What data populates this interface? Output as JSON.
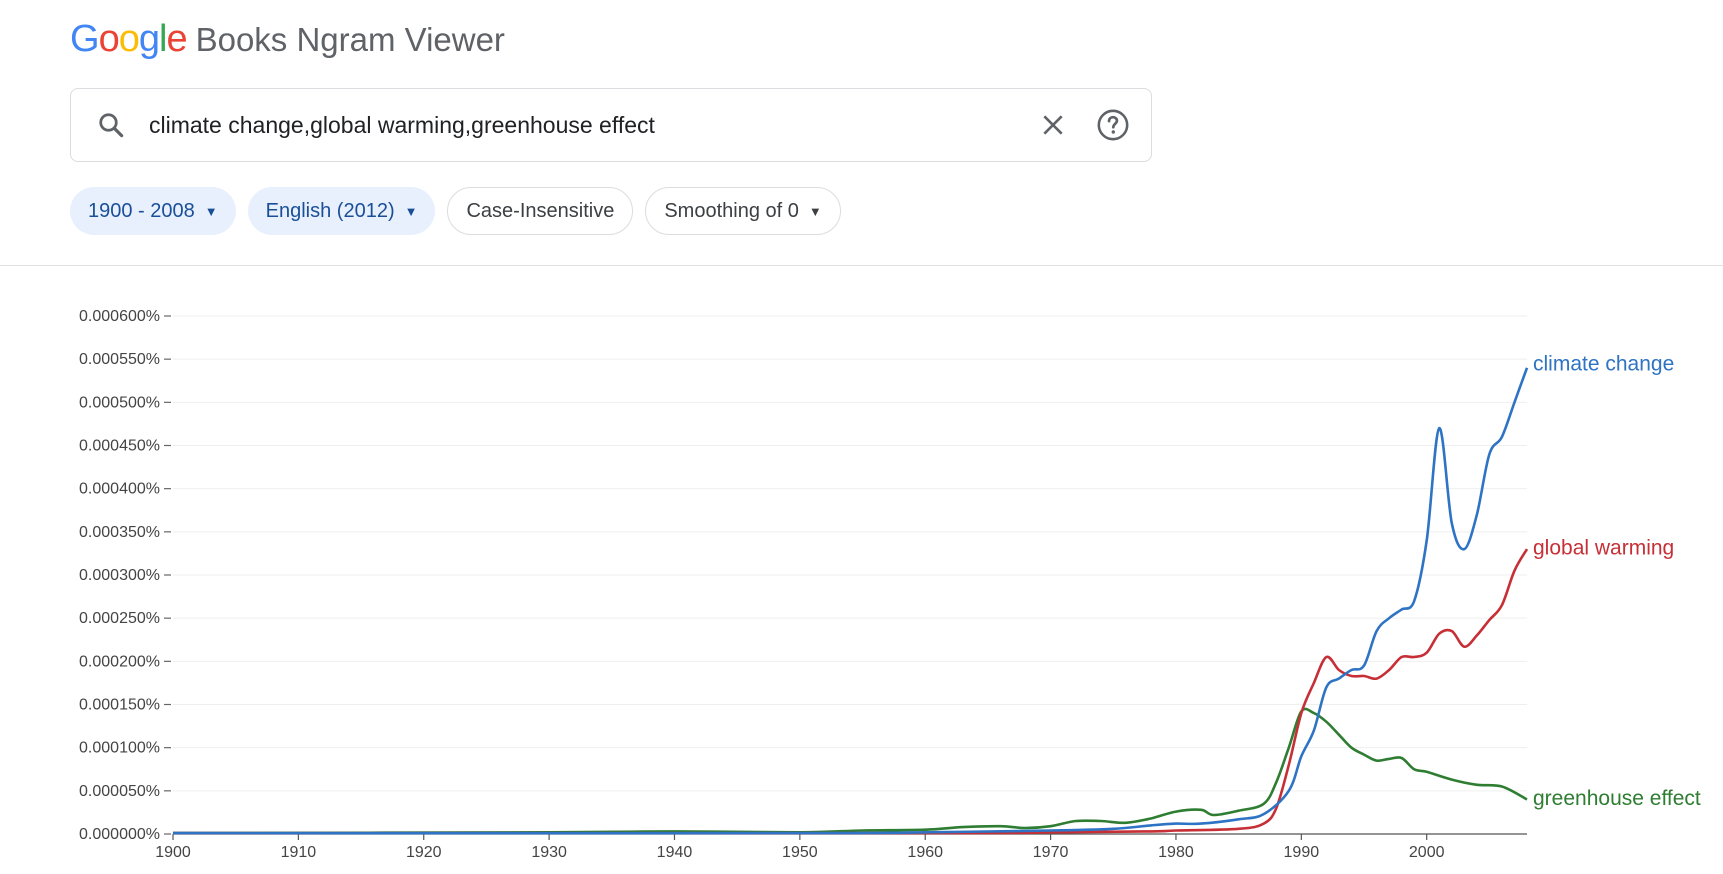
{
  "logo": {
    "letters": [
      {
        "ch": "G",
        "color": "#4285F4"
      },
      {
        "ch": "o",
        "color": "#EA4335"
      },
      {
        "ch": "o",
        "color": "#FBBC05"
      },
      {
        "ch": "g",
        "color": "#4285F4"
      },
      {
        "ch": "l",
        "color": "#34A853"
      },
      {
        "ch": "e",
        "color": "#EA4335"
      }
    ],
    "product": "Books Ngram Viewer"
  },
  "search": {
    "value": "climate change,global warming,greenhouse effect",
    "icon": "search-icon",
    "clear_icon": "close-icon",
    "help_icon": "help-circle-icon"
  },
  "filters": {
    "year_range": "1900 - 2008",
    "corpus": "English (2012)",
    "case": "Case-Insensitive",
    "smoothing": "Smoothing of 0"
  },
  "colors": {
    "accent": "#1a4f97",
    "chip_bg": "#e8f0fe",
    "climate_change": "#2e73c4",
    "global_warming": "#c62f36",
    "greenhouse_effect": "#2e7d32"
  },
  "chart_data": {
    "type": "line",
    "xlim": [
      1900,
      2008
    ],
    "ylim": [
      0,
      0.0006
    ],
    "x_ticks": [
      1900,
      1910,
      1920,
      1930,
      1940,
      1950,
      1960,
      1970,
      1980,
      1990,
      2000
    ],
    "y_ticks": [
      "0.000000%",
      "0.000050%",
      "0.000100%",
      "0.000150%",
      "0.000200%",
      "0.000250%",
      "0.000300%",
      "0.000350%",
      "0.000400%",
      "0.000450%",
      "0.000500%",
      "0.000550%",
      "0.000600%"
    ],
    "grid": true,
    "legend": "inline-right",
    "series": [
      {
        "name": "climate change",
        "color": "#2e73c4",
        "points": [
          [
            1900,
            1e-06
          ],
          [
            1950,
            1e-06
          ],
          [
            1960,
            2e-06
          ],
          [
            1970,
            4e-06
          ],
          [
            1975,
            6e-06
          ],
          [
            1978,
            1e-05
          ],
          [
            1980,
            1.2e-05
          ],
          [
            1982,
            1.2e-05
          ],
          [
            1985,
            1.7e-05
          ],
          [
            1987,
            2.3e-05
          ],
          [
            1989,
            5e-05
          ],
          [
            1990,
            9e-05
          ],
          [
            1991,
            0.00012
          ],
          [
            1992,
            0.00017
          ],
          [
            1993,
            0.00018
          ],
          [
            1994,
            0.00019
          ],
          [
            1995,
            0.000195
          ],
          [
            1996,
            0.000235
          ],
          [
            1997,
            0.00025
          ],
          [
            1998,
            0.00026
          ],
          [
            1999,
            0.00027
          ],
          [
            2000,
            0.00034
          ],
          [
            2001,
            0.00047
          ],
          [
            2002,
            0.00036
          ],
          [
            2003,
            0.00033
          ],
          [
            2004,
            0.00037
          ],
          [
            2005,
            0.00044
          ],
          [
            2006,
            0.00046
          ],
          [
            2007,
            0.0005
          ],
          [
            2008,
            0.00054
          ]
        ]
      },
      {
        "name": "global warming",
        "color": "#c62f36",
        "points": [
          [
            1900,
            1e-06
          ],
          [
            1960,
            1e-06
          ],
          [
            1970,
            2e-06
          ],
          [
            1978,
            3e-06
          ],
          [
            1980,
            4e-06
          ],
          [
            1985,
            6e-06
          ],
          [
            1987,
            1.2e-05
          ],
          [
            1988,
            3e-05
          ],
          [
            1989,
            8e-05
          ],
          [
            1990,
            0.00014
          ],
          [
            1991,
            0.000175
          ],
          [
            1992,
            0.000205
          ],
          [
            1993,
            0.00019
          ],
          [
            1994,
            0.000183
          ],
          [
            1995,
            0.000183
          ],
          [
            1996,
            0.00018
          ],
          [
            1997,
            0.00019
          ],
          [
            1998,
            0.000205
          ],
          [
            1999,
            0.000205
          ],
          [
            2000,
            0.00021
          ],
          [
            2001,
            0.000232
          ],
          [
            2002,
            0.000235
          ],
          [
            2003,
            0.000217
          ],
          [
            2004,
            0.00023
          ],
          [
            2005,
            0.000248
          ],
          [
            2006,
            0.000265
          ],
          [
            2007,
            0.000305
          ],
          [
            2008,
            0.00033
          ]
        ]
      },
      {
        "name": "greenhouse effect",
        "color": "#2e7d32",
        "points": [
          [
            1900,
            1e-06
          ],
          [
            1930,
            2e-06
          ],
          [
            1940,
            3e-06
          ],
          [
            1950,
            2e-06
          ],
          [
            1955,
            4e-06
          ],
          [
            1960,
            5e-06
          ],
          [
            1963,
            8e-06
          ],
          [
            1966,
            9e-06
          ],
          [
            1968,
            7e-06
          ],
          [
            1970,
            9e-06
          ],
          [
            1972,
            1.5e-05
          ],
          [
            1974,
            1.5e-05
          ],
          [
            1976,
            1.3e-05
          ],
          [
            1978,
            1.8e-05
          ],
          [
            1980,
            2.6e-05
          ],
          [
            1982,
            2.8e-05
          ],
          [
            1983,
            2.2e-05
          ],
          [
            1985,
            2.7e-05
          ],
          [
            1987,
            3.5e-05
          ],
          [
            1988,
            6e-05
          ],
          [
            1989,
            0.0001
          ],
          [
            1990,
            0.000142
          ],
          [
            1991,
            0.00014
          ],
          [
            1992,
            0.00013
          ],
          [
            1993,
            0.000115
          ],
          [
            1994,
            0.0001
          ],
          [
            1995,
            9.2e-05
          ],
          [
            1996,
            8.5e-05
          ],
          [
            1997,
            8.7e-05
          ],
          [
            1998,
            8.8e-05
          ],
          [
            1999,
            7.5e-05
          ],
          [
            2000,
            7.2e-05
          ],
          [
            2002,
            6.3e-05
          ],
          [
            2004,
            5.7e-05
          ],
          [
            2006,
            5.5e-05
          ],
          [
            2008,
            4e-05
          ]
        ]
      }
    ]
  }
}
